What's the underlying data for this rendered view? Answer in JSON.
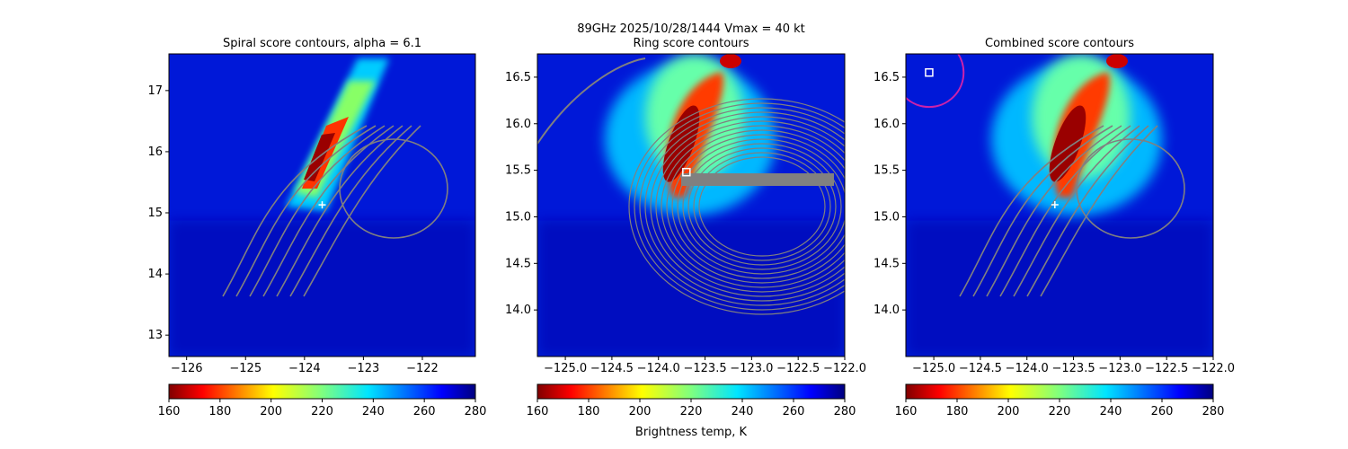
{
  "figure": {
    "suptitle_line1": "89GHz  2025/10/28/1444    Vmax = 40 kt",
    "colorbar_label": "Brightness temp, K"
  },
  "colorbar": {
    "ticks": [
      "160",
      "180",
      "200",
      "220",
      "240",
      "260",
      "280"
    ],
    "range": [
      160,
      280
    ],
    "colormap": "jet_r"
  },
  "chart_data": [
    {
      "type": "heatmap",
      "title": "Spiral score contours, alpha =  6.1",
      "xlabel": "",
      "ylabel": "",
      "xlim": [
        -126.3,
        -121.1
      ],
      "ylim": [
        12.65,
        17.6
      ],
      "xticks": [
        "−126",
        "−125",
        "−124",
        "−123",
        "−122"
      ],
      "xtick_values": [
        -126,
        -125,
        -124,
        -123,
        -122
      ],
      "yticks": [
        "13",
        "14",
        "15",
        "16",
        "17"
      ],
      "ytick_values": [
        13,
        14,
        15,
        16,
        17
      ],
      "markers": [
        {
          "type": "plus",
          "x": -123.7,
          "y": 15.13,
          "color": "#ffffff"
        }
      ],
      "contour_color": "#808080",
      "grid": false
    },
    {
      "type": "heatmap",
      "title": "Ring score contours",
      "xlabel": "",
      "ylabel": "",
      "xlim": [
        -125.3,
        -122.0
      ],
      "ylim": [
        13.5,
        16.75
      ],
      "xticks": [
        "−125.0",
        "−124.5",
        "−124.0",
        "−123.5",
        "−123.0",
        "−122.5",
        "−122.0"
      ],
      "xtick_values": [
        -125.0,
        -124.5,
        -124.0,
        -123.5,
        -123.0,
        -122.5,
        -122.0
      ],
      "yticks": [
        "14.0",
        "14.5",
        "15.0",
        "15.5",
        "16.0",
        "16.5"
      ],
      "ytick_values": [
        14.0,
        14.5,
        15.0,
        15.5,
        16.0,
        16.5
      ],
      "markers": [
        {
          "type": "square",
          "x": -123.7,
          "y": 15.48,
          "color": "#ffffff"
        }
      ],
      "contour_color": "#808080",
      "grid": false
    },
    {
      "type": "heatmap",
      "title": "Combined score contours",
      "xlabel": "",
      "ylabel": "",
      "xlim": [
        -125.3,
        -122.0
      ],
      "ylim": [
        13.5,
        16.75
      ],
      "xticks": [
        "−125.0",
        "−124.5",
        "−124.0",
        "−123.5",
        "−123.0",
        "−122.5",
        "−122.0"
      ],
      "xtick_values": [
        -125.0,
        -124.5,
        -124.0,
        -123.5,
        -123.0,
        -122.5,
        -122.0
      ],
      "yticks": [
        "14.0",
        "14.5",
        "15.0",
        "15.5",
        "16.0",
        "16.5"
      ],
      "ytick_values": [
        14.0,
        14.5,
        15.0,
        15.5,
        16.0,
        16.5
      ],
      "markers": [
        {
          "type": "plus",
          "x": -123.7,
          "y": 15.13,
          "color": "#ffffff"
        },
        {
          "type": "square",
          "x": -125.05,
          "y": 16.55,
          "color": "#ffffff"
        }
      ],
      "circle": {
        "x": -125.05,
        "y": 16.55,
        "r_deg": 0.37,
        "color": "#cc22aa"
      },
      "contour_color": "#808080",
      "grid": false
    }
  ]
}
